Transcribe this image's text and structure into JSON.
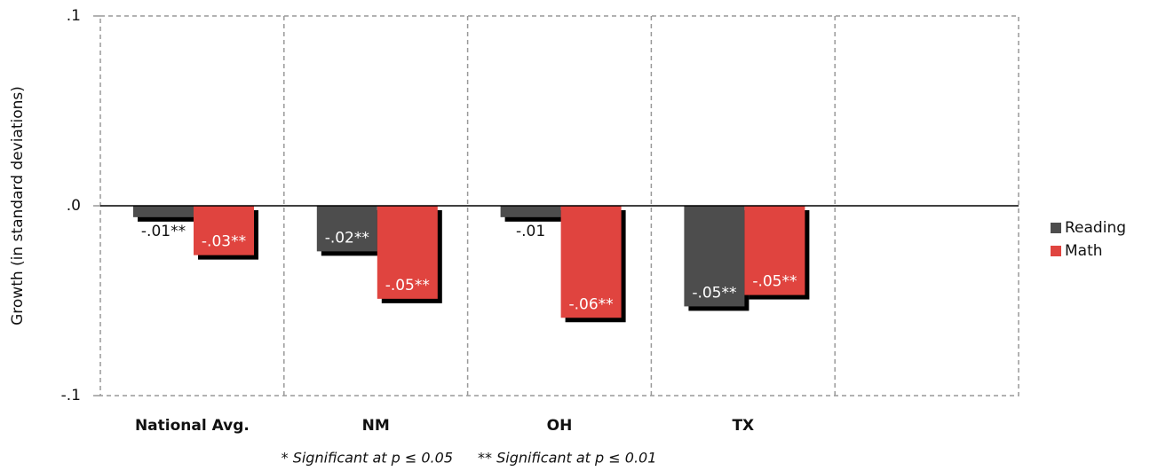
{
  "chart_data": {
    "type": "bar",
    "y_label": "Growth (in standard deviations)",
    "categories": [
      "National Avg.",
      "NM",
      "OH",
      "TX",
      null
    ],
    "series": [
      {
        "name": "Reading",
        "color": "#4d4d4d",
        "values": [
          -0.006,
          -0.024,
          -0.006,
          -0.053,
          null
        ],
        "value_labels": [
          "-.01**",
          "-.02**",
          "-.01",
          "-.05**",
          null
        ]
      },
      {
        "name": "Math",
        "color": "#e0443f",
        "values": [
          -0.026,
          -0.049,
          -0.059,
          -0.047,
          null
        ],
        "value_labels": [
          "-.03**",
          "-.05**",
          "-.06**",
          "-.05**",
          null
        ]
      }
    ],
    "ylim": [
      -0.1,
      0.1
    ],
    "yticks": [
      {
        "value": -0.1,
        "label": "-.1"
      },
      {
        "value": 0,
        "label": ".0"
      },
      {
        "value": 0.1,
        "label": ".1"
      }
    ],
    "legend": "right",
    "annotations": [
      "* Significant at p ≤ 0.05",
      "** Significant at p ≤ 0.01"
    ]
  }
}
